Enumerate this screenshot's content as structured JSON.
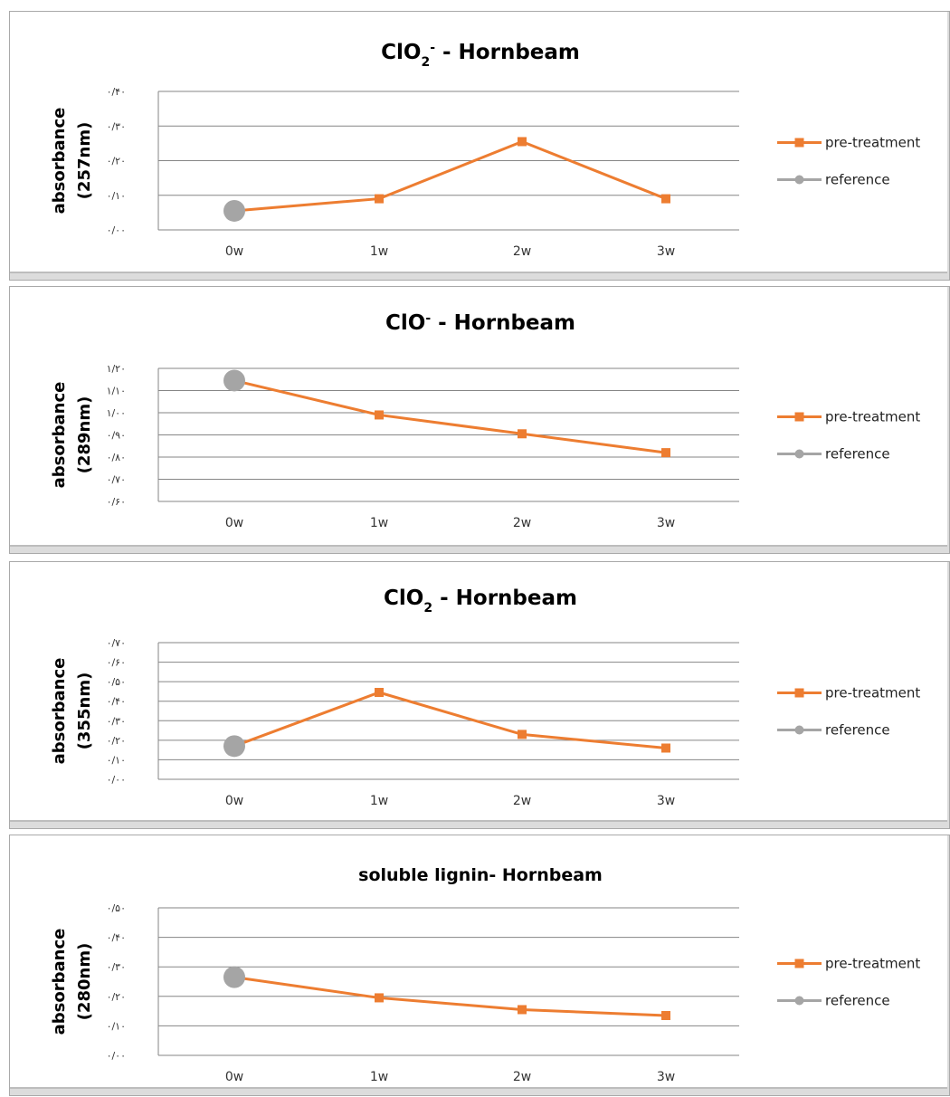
{
  "colors": {
    "pre_treatment": "#ed7d31",
    "reference": "#a5a5a5",
    "grid": "#868686"
  },
  "chart_data": [
    {
      "type": "line",
      "title": {
        "base": "ClO",
        "sub": "2",
        "sup": "-",
        "rest": " - Hornbeam"
      },
      "ylabel": [
        "absorbance",
        "(257nm)"
      ],
      "yticks": [
        "۰/۴۰",
        "۰/۳۰",
        "۰/۲۰",
        "۰/۱۰",
        "۰/۰۰"
      ],
      "ylim": [
        0.0,
        0.4
      ],
      "categories": [
        "0w",
        "1w",
        "2w",
        "3w"
      ],
      "series": [
        {
          "name": "pre-treatment",
          "values": [
            0.055,
            0.09,
            0.255,
            0.09
          ]
        },
        {
          "name": "reference",
          "values": [
            0.055,
            null,
            null,
            null
          ]
        }
      ],
      "legend_position": "right"
    },
    {
      "type": "line",
      "title": {
        "base": "ClO",
        "sub": "",
        "sup": "-",
        "rest": " - Hornbeam"
      },
      "ylabel": [
        "absorbance",
        "(289nm)"
      ],
      "yticks": [
        "۱/۲۰",
        "۱/۱۰",
        "۱/۰۰",
        "۰/۹۰",
        "۰/۸۰",
        "۰/۷۰",
        "۰/۶۰"
      ],
      "ylim": [
        0.6,
        1.2
      ],
      "categories": [
        "0w",
        "1w",
        "2w",
        "3w"
      ],
      "series": [
        {
          "name": "pre-treatment",
          "values": [
            1.145,
            0.99,
            0.905,
            0.82
          ]
        },
        {
          "name": "reference",
          "values": [
            1.145,
            null,
            null,
            null
          ]
        }
      ],
      "legend_position": "right"
    },
    {
      "type": "line",
      "title": {
        "base": "ClO",
        "sub": "2",
        "sup": "",
        "rest": " - Hornbeam"
      },
      "ylabel": [
        "absorbance",
        "(355nm)"
      ],
      "yticks": [
        "۰/۷۰",
        "۰/۶۰",
        "۰/۵۰",
        "۰/۴۰",
        "۰/۳۰",
        "۰/۲۰",
        "۰/۱۰",
        "۰/۰۰"
      ],
      "ylim": [
        0.0,
        0.7
      ],
      "categories": [
        "0w",
        "1w",
        "2w",
        "3w"
      ],
      "series": [
        {
          "name": "pre-treatment",
          "values": [
            0.17,
            0.445,
            0.23,
            0.16
          ]
        },
        {
          "name": "reference",
          "values": [
            0.17,
            null,
            null,
            null
          ]
        }
      ],
      "legend_position": "right"
    },
    {
      "type": "line",
      "title": {
        "base": "soluble lignin- Hornbeam",
        "sub": "",
        "sup": "",
        "rest": ""
      },
      "ylabel": [
        "absorbance",
        "(280nm)"
      ],
      "yticks": [
        "۰/۵۰",
        "۰/۴۰",
        "۰/۳۰",
        "۰/۲۰",
        "۰/۱۰",
        "۰/۰۰"
      ],
      "ylim": [
        0.0,
        0.5
      ],
      "categories": [
        "0w",
        "1w",
        "2w",
        "3w"
      ],
      "series": [
        {
          "name": "pre-treatment",
          "values": [
            0.265,
            0.195,
            0.155,
            0.135
          ]
        },
        {
          "name": "reference",
          "values": [
            0.265,
            null,
            null,
            null
          ]
        }
      ],
      "legend_position": "right"
    }
  ]
}
